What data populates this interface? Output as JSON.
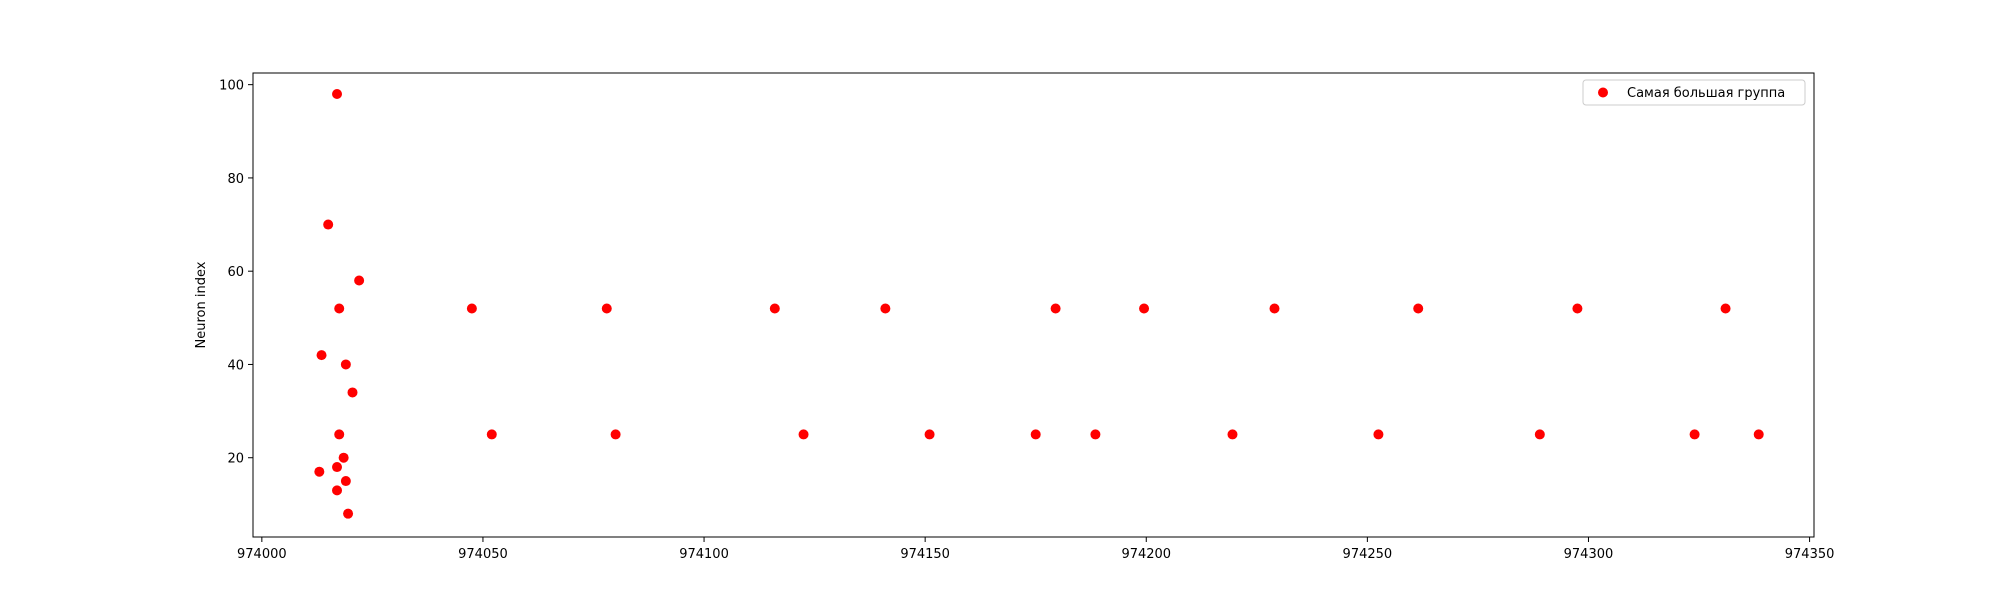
{
  "chart_data": {
    "type": "scatter",
    "title": "",
    "xlabel": "",
    "ylabel": "Neuron index",
    "xlim": [
      973998,
      974351
    ],
    "ylim": [
      3,
      102.5
    ],
    "xticks": [
      974000,
      974050,
      974100,
      974150,
      974200,
      974250,
      974300,
      974350
    ],
    "yticks": [
      20,
      40,
      60,
      80,
      100
    ],
    "grid": false,
    "legend_position": "top-right",
    "series": [
      {
        "name": "Самая большая группа",
        "color": "#ff0000",
        "marker": "circle",
        "points": [
          {
            "x": 974017,
            "y": 98
          },
          {
            "x": 974015,
            "y": 70
          },
          {
            "x": 974022,
            "y": 58
          },
          {
            "x": 974017.5,
            "y": 52
          },
          {
            "x": 974013.5,
            "y": 42
          },
          {
            "x": 974019,
            "y": 40
          },
          {
            "x": 974020.5,
            "y": 34
          },
          {
            "x": 974017.5,
            "y": 25
          },
          {
            "x": 974018.5,
            "y": 20
          },
          {
            "x": 974017,
            "y": 18
          },
          {
            "x": 974013,
            "y": 17
          },
          {
            "x": 974019,
            "y": 15
          },
          {
            "x": 974017,
            "y": 13
          },
          {
            "x": 974019.5,
            "y": 8
          },
          {
            "x": 974047.5,
            "y": 52
          },
          {
            "x": 974052,
            "y": 25
          },
          {
            "x": 974078,
            "y": 52
          },
          {
            "x": 974080,
            "y": 25
          },
          {
            "x": 974116,
            "y": 52
          },
          {
            "x": 974122.5,
            "y": 25
          },
          {
            "x": 974141,
            "y": 52
          },
          {
            "x": 974151,
            "y": 25
          },
          {
            "x": 974175,
            "y": 25
          },
          {
            "x": 974179.5,
            "y": 52
          },
          {
            "x": 974188.5,
            "y": 25
          },
          {
            "x": 974199.5,
            "y": 52
          },
          {
            "x": 974219.5,
            "y": 25
          },
          {
            "x": 974229,
            "y": 52
          },
          {
            "x": 974252.5,
            "y": 25
          },
          {
            "x": 974261.5,
            "y": 52
          },
          {
            "x": 974289,
            "y": 25
          },
          {
            "x": 974297.5,
            "y": 52
          },
          {
            "x": 974324,
            "y": 25
          },
          {
            "x": 974331,
            "y": 52
          },
          {
            "x": 974338.5,
            "y": 25
          }
        ]
      }
    ]
  }
}
